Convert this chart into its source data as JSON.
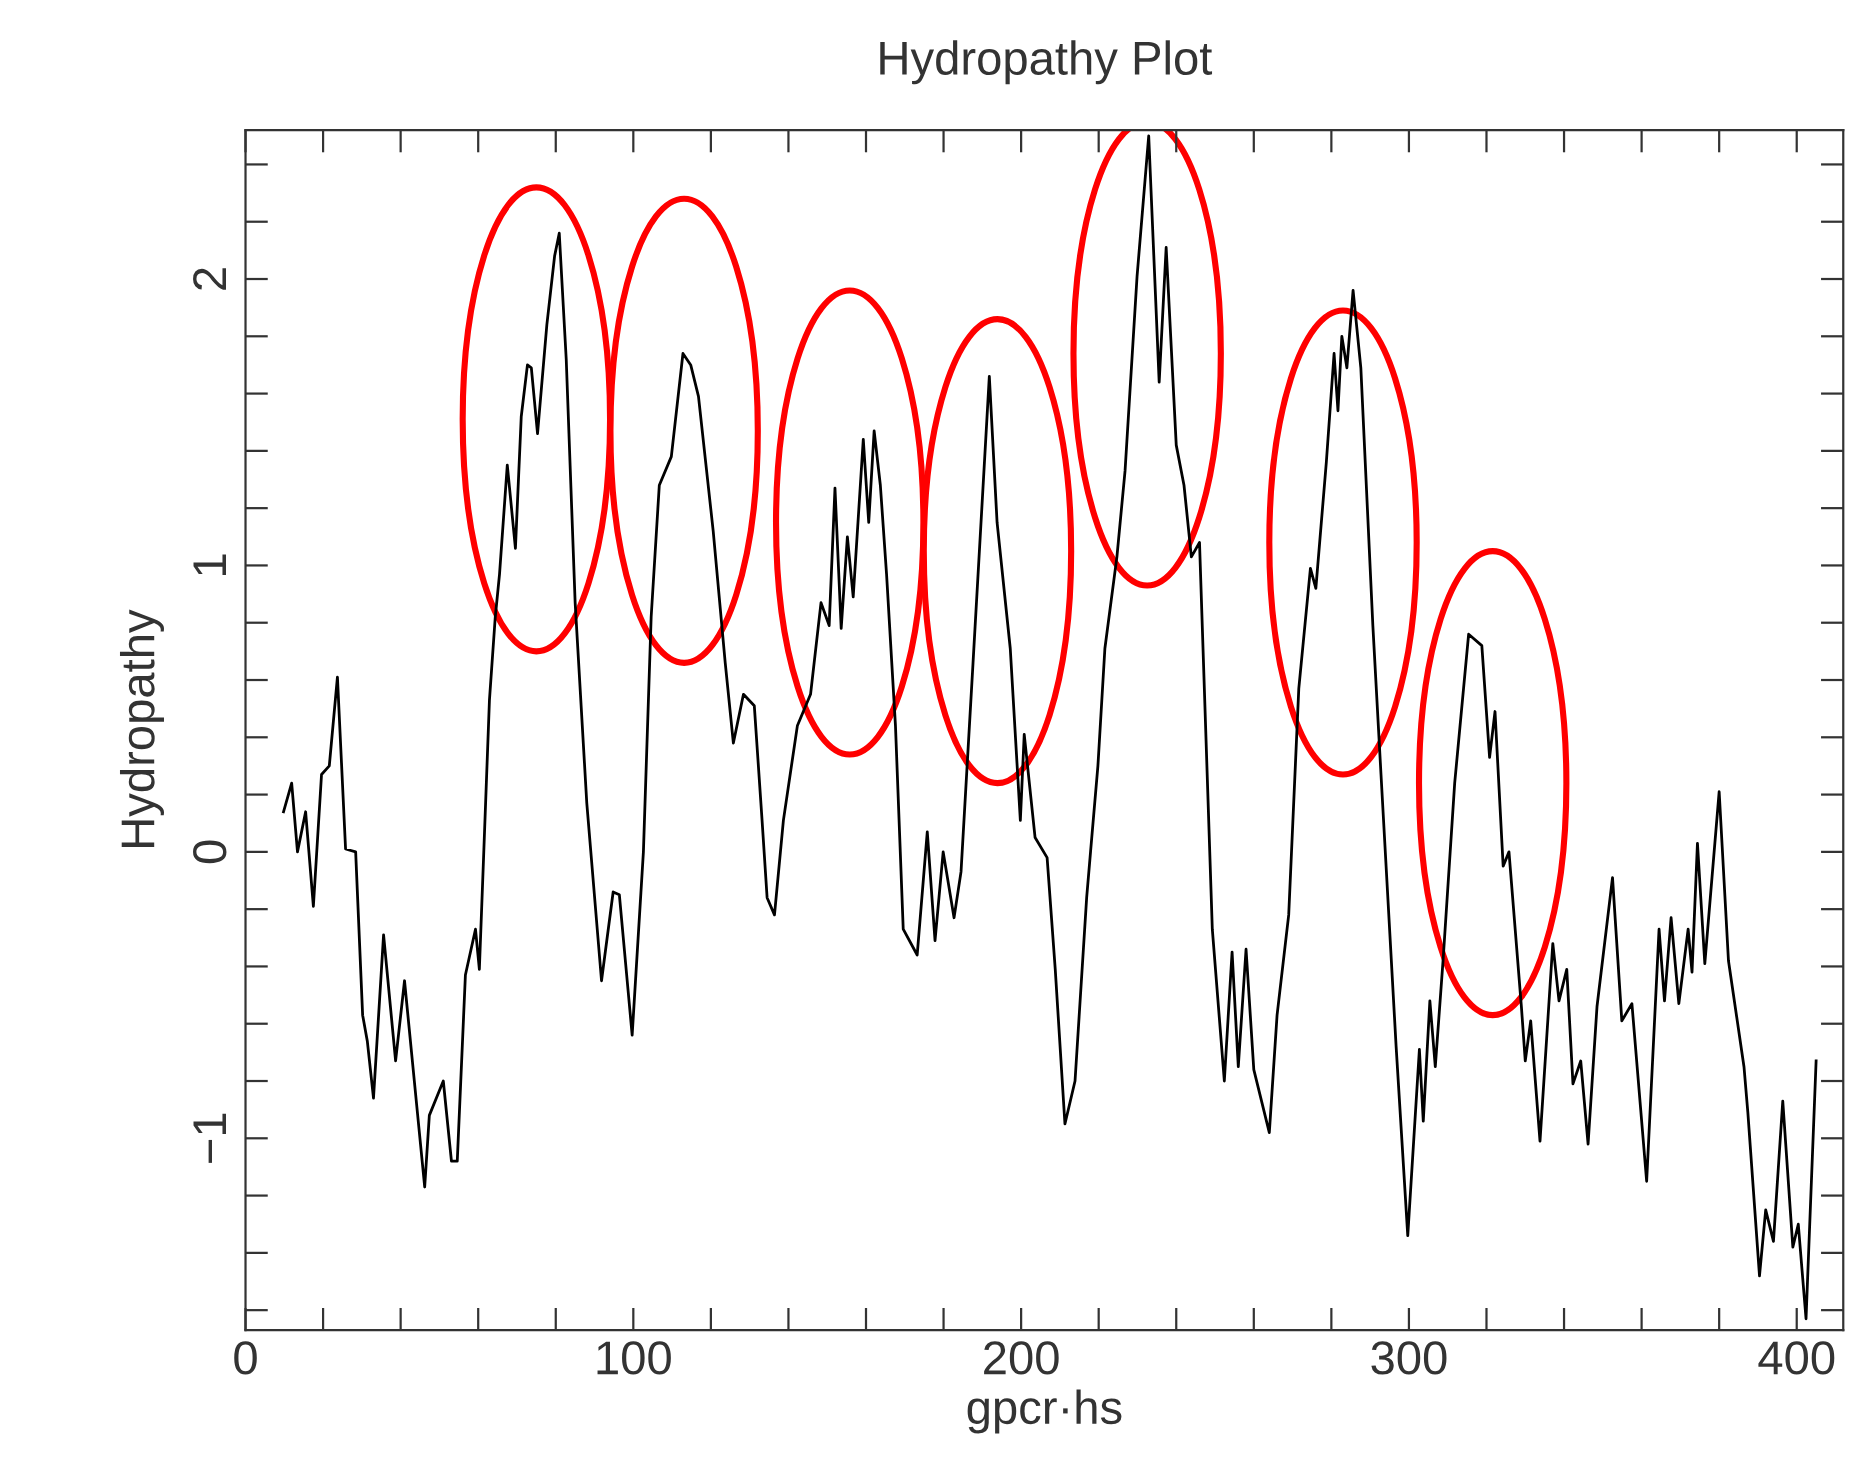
{
  "chart_data": {
    "type": "line",
    "title": "Hydropathy Plot",
    "xlabel": "gpcr·hs",
    "ylabel": "Hydropathy",
    "xlim": [
      0,
      412
    ],
    "ylim": [
      -1.67,
      2.52
    ],
    "grid": false,
    "legend": false,
    "marker": "none",
    "line_style": "solid",
    "xticks": [
      0,
      {
        "value": 20,
        "label": null
      },
      {
        "value": 40,
        "label": null
      },
      {
        "value": 60,
        "label": null
      },
      {
        "value": 80,
        "label": null
      },
      100,
      {
        "value": 120,
        "label": null
      },
      {
        "value": 140,
        "label": null
      },
      {
        "value": 160,
        "label": null
      },
      {
        "value": 180,
        "label": null
      },
      200,
      {
        "value": 220,
        "label": null
      },
      {
        "value": 240,
        "label": null
      },
      {
        "value": 260,
        "label": null
      },
      {
        "value": 280,
        "label": null
      },
      300,
      {
        "value": 320,
        "label": null
      },
      {
        "value": 340,
        "label": null
      },
      {
        "value": 360,
        "label": null
      },
      {
        "value": 380,
        "label": null
      },
      400
    ],
    "yticks": [
      {
        "value": -1.6,
        "label": null
      },
      {
        "value": -1.4,
        "label": null
      },
      {
        "value": -1.2,
        "label": null
      },
      {
        "value": -1,
        "label": "−1"
      },
      {
        "value": -0.8,
        "label": null
      },
      {
        "value": -0.6,
        "label": null
      },
      {
        "value": -0.4,
        "label": null
      },
      {
        "value": -0.2,
        "label": null
      },
      0,
      {
        "value": 0.2,
        "label": null
      },
      {
        "value": 0.4,
        "label": null
      },
      {
        "value": 0.6,
        "label": null
      },
      {
        "value": 0.8,
        "label": null
      },
      1,
      {
        "value": 1.2,
        "label": null
      },
      {
        "value": 1.4,
        "label": null
      },
      {
        "value": 1.6,
        "label": null
      },
      {
        "value": 1.8,
        "label": null
      },
      2,
      {
        "value": 2.2,
        "label": null
      },
      {
        "value": 2.4,
        "label": null
      }
    ],
    "series": [
      {
        "color": "#000000",
        "x": [
          9.8,
          11.9,
          13.4,
          15.5,
          17.5,
          19.6,
          21.6,
          23.7,
          25.8,
          28.4,
          30.2,
          31.4,
          33,
          35.6,
          38.7,
          41,
          46.2,
          47.4,
          51,
          53.1,
          54.6,
          56.7,
          59.3,
          60.3,
          61.3,
          62.9,
          64.4,
          65.5,
          67.5,
          69.6,
          71.1,
          72.7,
          73.7,
          75.3,
          77.7,
          79.7,
          80.9,
          82.7,
          85,
          88,
          91.8,
          94.8,
          96.4,
          99.7,
          102.6,
          104.6,
          106.7,
          109.8,
          112.8,
          114.8,
          116.8,
          120.6,
          123.7,
          125.8,
          128.4,
          131.2,
          133.2,
          134.5,
          136.4,
          138.7,
          142.3,
          145.7,
          148.4,
          150.5,
          152,
          153.6,
          155.2,
          156.7,
          159.3,
          160.7,
          162.1,
          163.7,
          165.3,
          167.6,
          169.6,
          173.2,
          175.8,
          177.8,
          179.9,
          182.7,
          184.5,
          187.6,
          191.8,
          193.8,
          197.2,
          199.8,
          200.8,
          203.6,
          206.7,
          208.8,
          211.3,
          213.9,
          216.9,
          217.9,
          219.8,
          221.6,
          224.7,
          226.8,
          229.9,
          232.9,
          235.6,
          237.4,
          240,
          242,
          243.9,
          246,
          249.3,
          252.4,
          254.4,
          256,
          258,
          260,
          264,
          266,
          269,
          271.6,
          274.6,
          276,
          278.7,
          280.7,
          281.7,
          282.7,
          284,
          285.6,
          287.6,
          290.7,
          292.8,
          296.7,
          299.7,
          302.7,
          303.7,
          305.4,
          306.8,
          308.8,
          311.8,
          315.4,
          318.8,
          320.8,
          322.2,
          324.3,
          325.8,
          329,
          330,
          331.4,
          333.8,
          337.1,
          338.7,
          340.7,
          342.3,
          344.3,
          346.2,
          348.5,
          352.5,
          354.9,
          357.5,
          361.3,
          364.5,
          365.9,
          367.6,
          369.6,
          372,
          373,
          374.4,
          376.3,
          380,
          382.4,
          386.4,
          387.4,
          390.4,
          392,
          394,
          396.4,
          399,
          400.4,
          402.4,
          405
        ],
        "values": [
          0.14,
          0.24,
          0.0,
          0.14,
          -0.19,
          0.27,
          0.3,
          0.61,
          0.01,
          0.0,
          -0.57,
          -0.66,
          -0.86,
          -0.29,
          -0.73,
          -0.45,
          -1.17,
          -0.92,
          -0.8,
          -1.08,
          -1.08,
          -0.43,
          -0.27,
          -0.41,
          -0.05,
          0.53,
          0.82,
          0.97,
          1.35,
          1.06,
          1.52,
          1.7,
          1.69,
          1.46,
          1.84,
          2.08,
          2.16,
          1.72,
          0.87,
          0.17,
          -0.45,
          -0.14,
          -0.15,
          -0.64,
          0.0,
          0.82,
          1.28,
          1.38,
          1.74,
          1.7,
          1.59,
          1.12,
          0.66,
          0.38,
          0.55,
          0.51,
          0.11,
          -0.16,
          -0.22,
          0.11,
          0.44,
          0.55,
          0.87,
          0.79,
          1.27,
          0.78,
          1.1,
          0.89,
          1.44,
          1.15,
          1.47,
          1.28,
          0.97,
          0.44,
          -0.27,
          -0.36,
          0.07,
          -0.31,
          0.0,
          -0.23,
          -0.07,
          0.66,
          1.66,
          1.15,
          0.71,
          0.11,
          0.41,
          0.05,
          -0.02,
          -0.41,
          -0.95,
          -0.8,
          -0.16,
          0.0,
          0.3,
          0.71,
          1.03,
          1.33,
          2.01,
          2.5,
          1.64,
          2.11,
          1.42,
          1.28,
          1.03,
          1.08,
          -0.27,
          -0.8,
          -0.35,
          -0.75,
          -0.34,
          -0.76,
          -0.98,
          -0.57,
          -0.22,
          0.57,
          0.99,
          0.92,
          1.36,
          1.74,
          1.54,
          1.8,
          1.69,
          1.96,
          1.69,
          0.79,
          0.27,
          -0.68,
          -1.34,
          -0.69,
          -0.94,
          -0.52,
          -0.75,
          -0.38,
          0.24,
          0.76,
          0.72,
          0.33,
          0.49,
          -0.05,
          0.0,
          -0.54,
          -0.73,
          -0.59,
          -1.01,
          -0.32,
          -0.52,
          -0.41,
          -0.81,
          -0.73,
          -1.02,
          -0.54,
          -0.09,
          -0.59,
          -0.53,
          -1.15,
          -0.27,
          -0.52,
          -0.23,
          -0.53,
          -0.27,
          -0.42,
          0.03,
          -0.39,
          0.21,
          -0.38,
          -0.75,
          -0.91,
          -1.48,
          -1.25,
          -1.36,
          -0.87,
          -1.38,
          -1.3,
          -1.63,
          -0.73
        ]
      }
    ]
  }
}
